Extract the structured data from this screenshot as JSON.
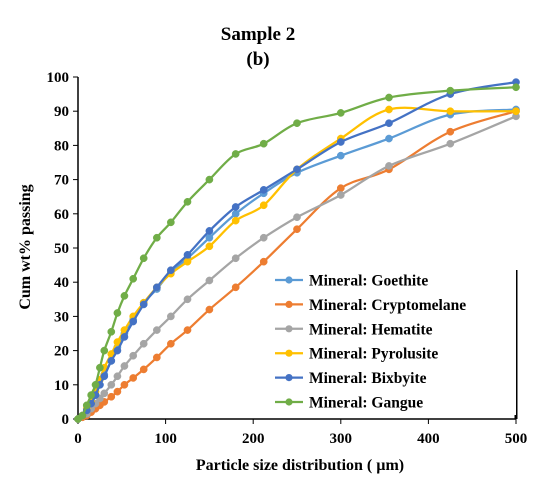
{
  "chart_data": {
    "type": "line",
    "title": "Sample 2",
    "subtitle": "(b)",
    "xlabel": "Particle size distribution ( µm)",
    "ylabel": "Cum wt% passing",
    "xlim": [
      0,
      500
    ],
    "ylim": [
      0,
      100
    ],
    "x_ticks": [
      "0",
      "100",
      "200",
      "300",
      "400",
      "500"
    ],
    "y_ticks": [
      "0",
      "10",
      "20",
      "30",
      "40",
      "50",
      "60",
      "70",
      "80",
      "90",
      "100"
    ],
    "grid": false,
    "legend_position": "bottom-right",
    "colors": {
      "Goethite": "#5b9bd5",
      "Cryptomelane": "#ed7d31",
      "Hematite": "#a5a5a5",
      "Pyrolusite": "#ffc000",
      "Bixbyite": "#4472c4",
      "Gangue": "#70ad47"
    },
    "series": [
      {
        "name": "Mineral: Goethite",
        "color": "#5b9bd5",
        "x": [
          0,
          5,
          10,
          15,
          20,
          25,
          30,
          38,
          45,
          53,
          63,
          75,
          90,
          106,
          125,
          150,
          180,
          212,
          250,
          300,
          355,
          425,
          500
        ],
        "y": [
          0,
          1,
          2,
          4,
          7,
          10,
          13,
          17,
          21,
          25,
          29,
          34,
          38,
          43,
          47,
          53,
          60,
          66,
          72,
          77,
          82,
          89,
          90.5
        ]
      },
      {
        "name": "Mineral: Cryptomelane",
        "color": "#ed7d31",
        "x": [
          0,
          5,
          10,
          15,
          20,
          25,
          30,
          38,
          45,
          53,
          63,
          75,
          90,
          106,
          125,
          150,
          180,
          212,
          250,
          300,
          355,
          425,
          500
        ],
        "y": [
          0,
          0.5,
          1,
          2,
          3,
          4,
          5,
          6.5,
          8,
          10,
          12,
          14.5,
          18,
          22,
          26,
          32,
          38.5,
          46,
          55.5,
          67.5,
          73,
          84,
          90
        ]
      },
      {
        "name": "Mineral: Hematite",
        "color": "#a5a5a5",
        "x": [
          0,
          5,
          10,
          15,
          20,
          25,
          30,
          38,
          45,
          53,
          63,
          75,
          90,
          106,
          125,
          150,
          180,
          212,
          250,
          300,
          355,
          425,
          500
        ],
        "y": [
          0,
          1,
          1.5,
          3,
          4.5,
          6,
          7.5,
          10,
          12.5,
          15.5,
          18.5,
          22,
          26,
          30,
          35,
          40.5,
          47,
          53,
          59,
          65.5,
          74,
          80.5,
          88.5
        ]
      },
      {
        "name": "Mineral: Pyrolusite",
        "color": "#ffc000",
        "x": [
          0,
          5,
          10,
          15,
          20,
          25,
          30,
          38,
          45,
          53,
          63,
          75,
          90,
          106,
          125,
          150,
          180,
          212,
          250,
          300,
          355,
          425,
          500
        ],
        "y": [
          0,
          1,
          3,
          5,
          8,
          11.5,
          15,
          19,
          22.5,
          26,
          30,
          34,
          38.5,
          42.5,
          46,
          50.5,
          58,
          62.5,
          73,
          82,
          90.5,
          90,
          90
        ]
      },
      {
        "name": "Mineral: Bixbyite",
        "color": "#4472c4",
        "x": [
          0,
          5,
          10,
          15,
          20,
          25,
          30,
          38,
          45,
          53,
          63,
          75,
          90,
          106,
          125,
          150,
          180,
          212,
          250,
          300,
          355,
          425,
          500
        ],
        "y": [
          0,
          1,
          2.5,
          4.5,
          7,
          10,
          12.5,
          17,
          20,
          24,
          28.5,
          33.5,
          38.5,
          43.5,
          48,
          55,
          62,
          67,
          73,
          81,
          86.5,
          95,
          98.5
        ]
      },
      {
        "name": "Mineral: Gangue",
        "color": "#70ad47",
        "x": [
          0,
          5,
          10,
          15,
          20,
          25,
          30,
          38,
          45,
          53,
          63,
          75,
          90,
          106,
          125,
          150,
          180,
          212,
          250,
          300,
          355,
          425,
          500
        ],
        "y": [
          0,
          1,
          4,
          7,
          10,
          15,
          20,
          25.5,
          31,
          36,
          41,
          47,
          53,
          57.5,
          63.5,
          70,
          77.5,
          80.5,
          86.5,
          89.5,
          94,
          96,
          97
        ]
      }
    ]
  }
}
